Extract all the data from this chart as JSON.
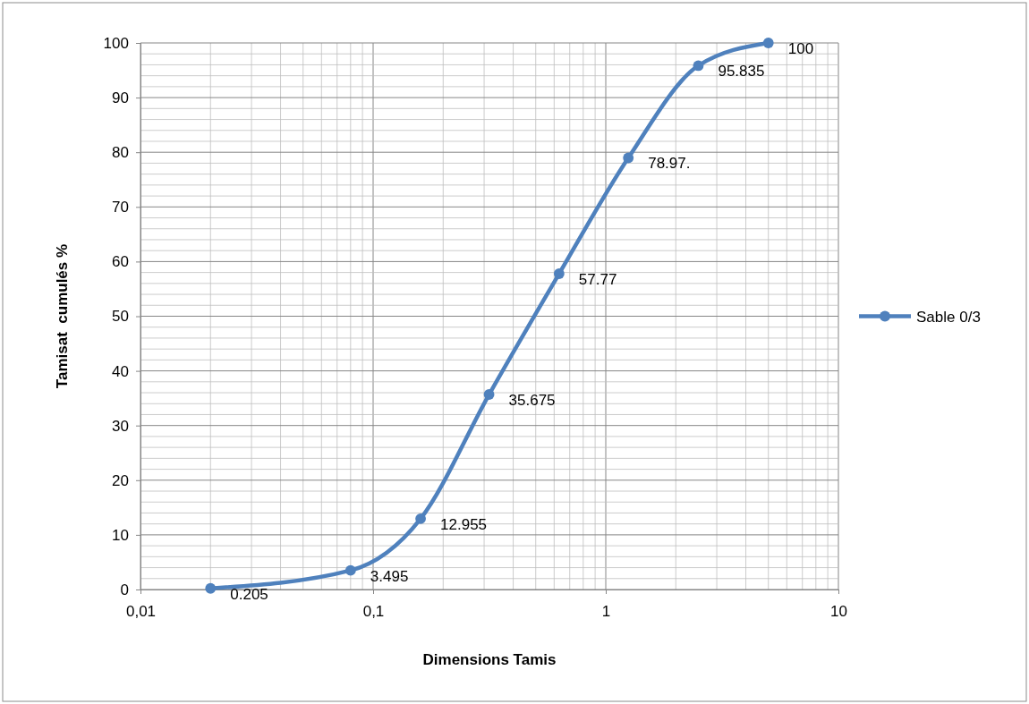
{
  "chart_data": {
    "type": "line",
    "xlabel": "Dimensions Tamis",
    "ylabel": "Tamisat  cumulés %",
    "x": [
      0.02,
      0.08,
      0.16,
      0.315,
      0.63,
      1.25,
      2.5,
      5
    ],
    "series": [
      {
        "name": "Sable 0/3",
        "color": "#4f81bd",
        "values": [
          0.205,
          3.495,
          12.955,
          35.675,
          57.77,
          78.97,
          95.835,
          100
        ],
        "value_labels": [
          "0.205",
          "3.495",
          "12.955",
          "35.675",
          "57.77",
          "78.97.",
          "95.835",
          "100"
        ]
      }
    ],
    "xlim": [
      0.01,
      10
    ],
    "xticks": [
      {
        "value": 0.01,
        "label": "0,01"
      },
      {
        "value": 0.1,
        "label": "0,1"
      },
      1,
      10
    ],
    "ylim": [
      0,
      100
    ],
    "yticks": [
      0,
      10,
      20,
      30,
      40,
      50,
      60,
      70,
      80,
      90,
      100
    ],
    "log": "x",
    "grid": true,
    "legend": "right",
    "marker": "circle",
    "line_style": "solid"
  }
}
